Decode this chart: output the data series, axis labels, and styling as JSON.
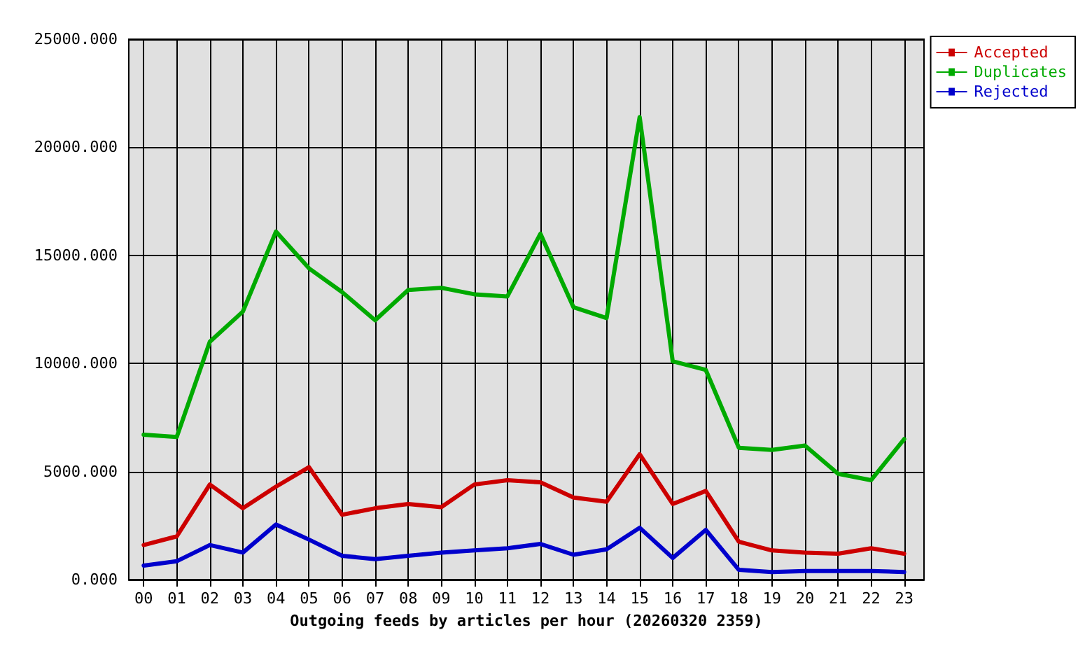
{
  "chart_data": {
    "type": "line",
    "xlabel": "Outgoing feeds by articles per hour (20260320 2359)",
    "categories": [
      "00",
      "01",
      "02",
      "03",
      "04",
      "05",
      "06",
      "07",
      "08",
      "09",
      "10",
      "11",
      "12",
      "13",
      "14",
      "15",
      "16",
      "17",
      "18",
      "19",
      "20",
      "21",
      "22",
      "23"
    ],
    "series": [
      {
        "name": "Accepted",
        "color": "#cc0000",
        "values": [
          1600,
          2000,
          4400,
          3300,
          4300,
          5200,
          3000,
          3300,
          3500,
          3350,
          4400,
          4600,
          4500,
          3800,
          3600,
          5800,
          3500,
          4100,
          1750,
          1350,
          1250,
          1200,
          1450,
          1200
        ]
      },
      {
        "name": "Duplicates",
        "color": "#00aa00",
        "values": [
          6700,
          6600,
          11000,
          12400,
          16100,
          14400,
          13300,
          12000,
          13400,
          13500,
          13200,
          13100,
          16000,
          12600,
          12100,
          21400,
          10100,
          9700,
          6100,
          6000,
          6200,
          4900,
          4600,
          6500
        ]
      },
      {
        "name": "Rejected",
        "color": "#0000cc",
        "values": [
          650,
          850,
          1600,
          1250,
          2550,
          1850,
          1100,
          950,
          1100,
          1250,
          1350,
          1450,
          1650,
          1150,
          1400,
          2400,
          1000,
          2300,
          450,
          350,
          400,
          400,
          400,
          350
        ]
      }
    ],
    "ylim": [
      0,
      25000
    ],
    "yticks": [
      {
        "value": 0,
        "label": "0.000"
      },
      {
        "value": 5000,
        "label": "5000.000"
      },
      {
        "value": 10000,
        "label": "10000.000"
      },
      {
        "value": 15000,
        "label": "15000.000"
      },
      {
        "value": 20000,
        "label": "20000.000"
      },
      {
        "value": 25000,
        "label": "25000.000"
      }
    ],
    "grid": true,
    "legend": "top right",
    "marker": "none",
    "line_style": "solid"
  }
}
